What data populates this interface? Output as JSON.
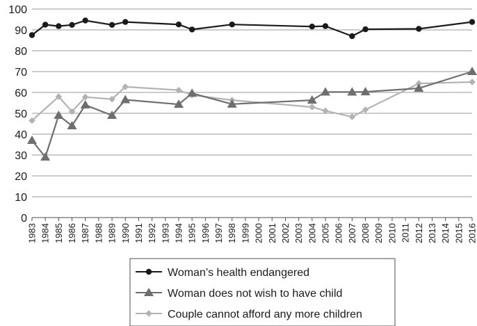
{
  "chart_data": {
    "type": "line",
    "title": "",
    "xlabel": "",
    "ylabel": "",
    "ylim": [
      0,
      100
    ],
    "yticks": [
      0,
      10,
      20,
      30,
      40,
      50,
      60,
      70,
      80,
      90,
      100
    ],
    "x": [
      1983,
      1984,
      1985,
      1986,
      1987,
      1988,
      1989,
      1990,
      1991,
      1992,
      1993,
      1994,
      1995,
      1996,
      1997,
      1998,
      1999,
      2000,
      2001,
      2002,
      2003,
      2004,
      2005,
      2006,
      2007,
      2008,
      2009,
      2010,
      2011,
      2012,
      2013,
      2014,
      2015,
      2016
    ],
    "grid": "horizontal",
    "legend_position": "bottom-center",
    "series": [
      {
        "name": "Woman’s health endangered",
        "color": "#1a1a1a",
        "marker": "circle",
        "points": [
          [
            1983,
            87.5
          ],
          [
            1984,
            92.5
          ],
          [
            1985,
            91.8
          ],
          [
            1986,
            92.4
          ],
          [
            1987,
            94.5
          ],
          [
            1989,
            92.4
          ],
          [
            1990,
            93.8
          ],
          [
            1994,
            92.6
          ],
          [
            1995,
            90.2
          ],
          [
            1998,
            92.6
          ],
          [
            2004,
            91.6
          ],
          [
            2005,
            91.8
          ],
          [
            2007,
            87.0
          ],
          [
            2008,
            90.3
          ],
          [
            2012,
            90.5
          ],
          [
            2016,
            93.8
          ]
        ]
      },
      {
        "name": "Woman does not wish to have child",
        "color": "#6e6e6e",
        "marker": "triangle",
        "points": [
          [
            1983,
            37.0
          ],
          [
            1984,
            29.0
          ],
          [
            1985,
            49.0
          ],
          [
            1986,
            44.0
          ],
          [
            1987,
            54.0
          ],
          [
            1989,
            49.0
          ],
          [
            1990,
            56.5
          ],
          [
            1994,
            54.3
          ],
          [
            1995,
            59.6
          ],
          [
            1998,
            54.4
          ],
          [
            2004,
            56.3
          ],
          [
            2005,
            60.2
          ],
          [
            2007,
            60.2
          ],
          [
            2008,
            60.3
          ],
          [
            2012,
            62.0
          ],
          [
            2016,
            70.0
          ]
        ]
      },
      {
        "name": "Couple cannot afford any more children",
        "color": "#b3b3b3",
        "marker": "diamond",
        "points": [
          [
            1983,
            46.5
          ],
          [
            1985,
            58.0
          ],
          [
            1986,
            50.8
          ],
          [
            1987,
            57.8
          ],
          [
            1989,
            56.8
          ],
          [
            1990,
            62.7
          ],
          [
            1994,
            61.1
          ],
          [
            1995,
            58.8
          ],
          [
            1998,
            56.3
          ],
          [
            2004,
            53.0
          ],
          [
            2005,
            51.2
          ],
          [
            2007,
            48.3
          ],
          [
            2008,
            51.7
          ],
          [
            2012,
            64.3
          ],
          [
            2016,
            65.0
          ]
        ]
      }
    ]
  }
}
